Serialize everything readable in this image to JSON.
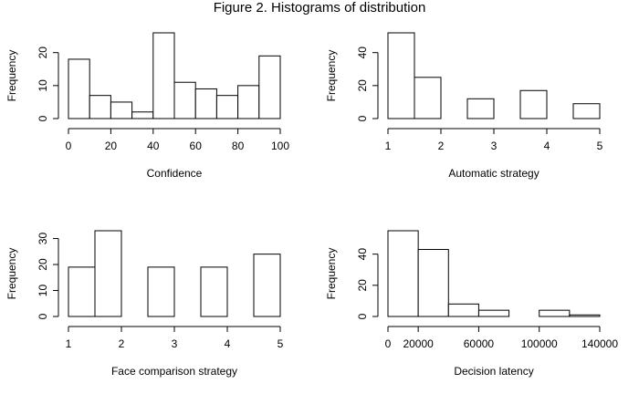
{
  "figure": {
    "title": "Figure 2. Histograms of distribution"
  },
  "chart_data": [
    {
      "type": "bar",
      "subtype": "histogram",
      "xlabel": "Confidence",
      "ylabel": "Frequency",
      "bins": [
        [
          0,
          10
        ],
        [
          10,
          20
        ],
        [
          20,
          30
        ],
        [
          30,
          40
        ],
        [
          40,
          50
        ],
        [
          50,
          60
        ],
        [
          60,
          70
        ],
        [
          70,
          80
        ],
        [
          80,
          90
        ],
        [
          90,
          100
        ]
      ],
      "values": [
        18,
        7,
        5,
        2,
        26,
        11,
        9,
        7,
        10,
        19
      ],
      "xlim": [
        0,
        100
      ],
      "ylim": [
        0,
        26
      ],
      "xticks": [
        0,
        20,
        40,
        60,
        80,
        100
      ],
      "xtick_labels": [
        "0",
        "20",
        "40",
        "60",
        "80",
        "100"
      ],
      "yticks": [
        0,
        10,
        20
      ],
      "ytick_labels": [
        "0",
        "10",
        "20"
      ],
      "grid": false
    },
    {
      "type": "bar",
      "subtype": "histogram",
      "xlabel": "Automatic strategy",
      "ylabel": "Frequency",
      "bins": [
        [
          1,
          1.5
        ],
        [
          1.5,
          2
        ],
        [
          2,
          2.5
        ],
        [
          2.5,
          3
        ],
        [
          3,
          3.5
        ],
        [
          3.5,
          4
        ],
        [
          4,
          4.5
        ],
        [
          4.5,
          5
        ]
      ],
      "values": [
        52,
        25,
        0,
        12,
        0,
        17,
        0,
        9
      ],
      "xlim": [
        1,
        5
      ],
      "ylim": [
        0,
        52
      ],
      "xticks": [
        1,
        2,
        3,
        4,
        5
      ],
      "xtick_labels": [
        "1",
        "2",
        "3",
        "4",
        "5"
      ],
      "yticks": [
        0,
        20,
        40
      ],
      "ytick_labels": [
        "0",
        "20",
        "40"
      ],
      "grid": false
    },
    {
      "type": "bar",
      "subtype": "histogram",
      "xlabel": "Face comparison strategy",
      "ylabel": "Frequency",
      "bins": [
        [
          1,
          1.5
        ],
        [
          1.5,
          2
        ],
        [
          2,
          2.5
        ],
        [
          2.5,
          3
        ],
        [
          3,
          3.5
        ],
        [
          3.5,
          4
        ],
        [
          4,
          4.5
        ],
        [
          4.5,
          5
        ]
      ],
      "values": [
        19,
        33,
        0,
        19,
        0,
        19,
        0,
        24
      ],
      "xlim": [
        1,
        5
      ],
      "ylim": [
        0,
        33
      ],
      "xticks": [
        1,
        2,
        3,
        4,
        5
      ],
      "xtick_labels": [
        "1",
        "2",
        "3",
        "4",
        "5"
      ],
      "yticks": [
        0,
        10,
        20,
        30
      ],
      "ytick_labels": [
        "0",
        "10",
        "20",
        "30"
      ],
      "grid": false
    },
    {
      "type": "bar",
      "subtype": "histogram",
      "xlabel": "Decision latency",
      "ylabel": "Frequency",
      "bins": [
        [
          0,
          20000
        ],
        [
          20000,
          40000
        ],
        [
          40000,
          60000
        ],
        [
          60000,
          80000
        ],
        [
          80000,
          100000
        ],
        [
          100000,
          120000
        ],
        [
          120000,
          140000
        ]
      ],
      "values": [
        55,
        43,
        8,
        4,
        0,
        4,
        1
      ],
      "xlim": [
        0,
        140000
      ],
      "ylim": [
        0,
        55
      ],
      "xticks": [
        0,
        20000,
        60000,
        100000,
        140000
      ],
      "xtick_labels": [
        "0",
        "20000",
        "60000",
        "100000",
        "140000"
      ],
      "yticks": [
        0,
        20,
        40
      ],
      "ytick_labels": [
        "0",
        "20",
        "40"
      ],
      "grid": false
    }
  ]
}
